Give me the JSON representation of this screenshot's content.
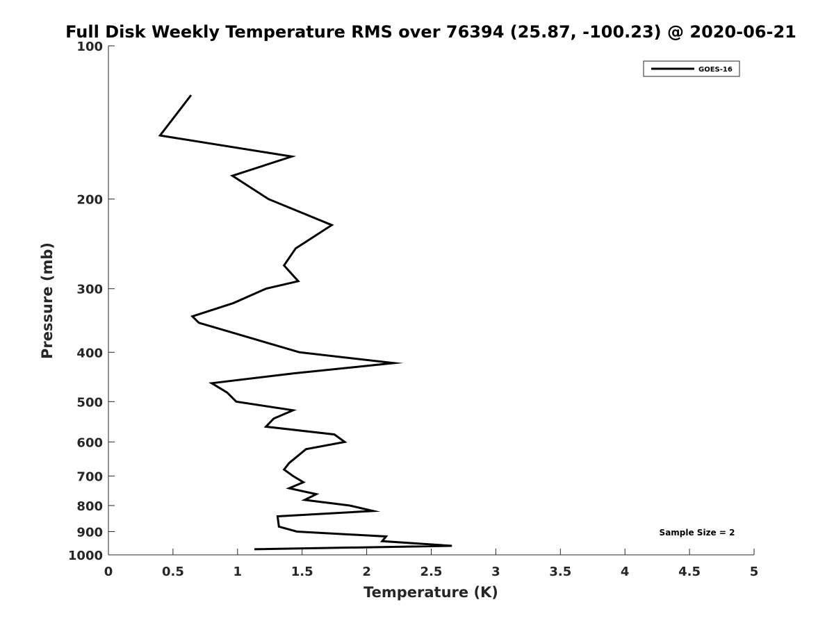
{
  "chart_data": {
    "type": "line",
    "title": "Full Disk Weekly Temperature RMS over 76394 (25.87, -100.23) @ 2020-06-21",
    "xlabel": "Temperature (K)",
    "ylabel": "Pressure (mb)",
    "xlim": [
      0,
      5
    ],
    "ylim": [
      100,
      1000
    ],
    "y_scale": "log",
    "y_reversed": true,
    "x_ticks": [
      "0",
      "0.5",
      "1",
      "1.5",
      "2",
      "2.5",
      "3",
      "3.5",
      "4",
      "4.5",
      "5"
    ],
    "y_ticks": [
      "100",
      "200",
      "300",
      "400",
      "500",
      "600",
      "700",
      "800",
      "900",
      "1000"
    ],
    "grid": false,
    "legend_position": "top-right",
    "annotation": "Sample Size = 2",
    "series": [
      {
        "name": "GOES-16",
        "color": "#000000",
        "x": [
          0.64,
          0.4,
          1.42,
          0.96,
          1.24,
          1.73,
          1.45,
          1.36,
          1.47,
          1.22,
          0.97,
          0.65,
          0.7,
          1.48,
          2.21,
          1.43,
          0.8,
          0.92,
          0.99,
          1.43,
          1.28,
          1.22,
          1.75,
          1.83,
          1.53,
          1.4,
          1.36,
          1.43,
          1.51,
          1.4,
          1.61,
          1.52,
          1.87,
          2.05,
          1.31,
          1.32,
          1.46,
          2.15,
          2.12,
          2.66,
          1.13
        ],
        "y": [
          125,
          150,
          165,
          180,
          200,
          225,
          250,
          270,
          290,
          300,
          320,
          340,
          350,
          400,
          420,
          440,
          460,
          480,
          500,
          520,
          540,
          560,
          580,
          600,
          620,
          660,
          680,
          700,
          720,
          740,
          760,
          780,
          800,
          820,
          840,
          880,
          900,
          920,
          940,
          960,
          975
        ]
      }
    ]
  }
}
